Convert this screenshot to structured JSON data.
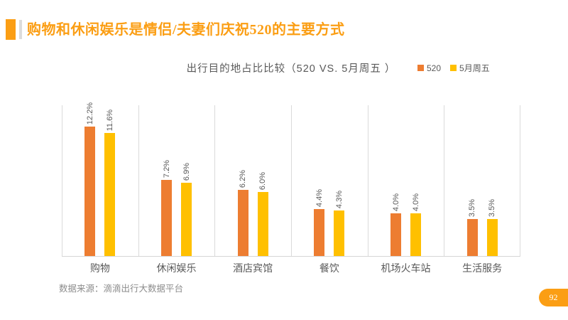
{
  "slide": {
    "title": "购物和休闲娱乐是情侣/夫妻们庆祝520的主要方式",
    "source_note": "数据来源：滴滴出行大数据平台",
    "page_number": "92",
    "accent_color": "#FB9E14"
  },
  "chart_data": {
    "type": "bar",
    "title": "出行目的地占比比较（520  VS. 5月周五 ）",
    "categories": [
      "购物",
      "休闲娱乐",
      "酒店宾馆",
      "餐饮",
      "机场火车站",
      "生活服务"
    ],
    "series": [
      {
        "name": "520",
        "color": "#ED7D31",
        "values": [
          12.2,
          7.2,
          6.2,
          4.4,
          4.0,
          3.5
        ]
      },
      {
        "name": "5月周五",
        "color": "#FFC000",
        "values": [
          11.6,
          6.9,
          6.0,
          4.3,
          4.0,
          3.5
        ]
      }
    ],
    "value_suffix": "%",
    "data_labels": "rotated-vertical",
    "ylim": [
      0,
      14.2
    ],
    "y_axis_visible": false,
    "gridlines": "vertical-category-separators",
    "gridline_color": "#DADADA",
    "axis_line_color": "#D6D6D6",
    "text_color": "#595959",
    "legend_position": "top-right"
  }
}
